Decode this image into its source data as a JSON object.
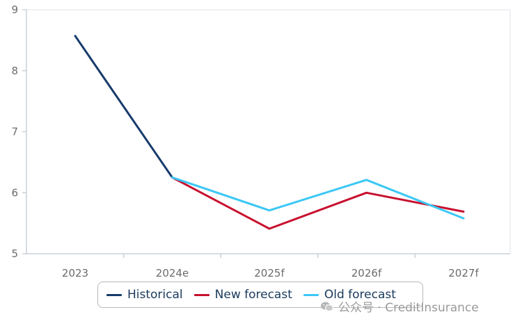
{
  "chart_data": {
    "type": "line",
    "categories": [
      "2023",
      "2024e",
      "2025f",
      "2026f",
      "2027f"
    ],
    "y_ticks": [
      "5",
      "6",
      "7",
      "8",
      "9"
    ],
    "ylim": [
      5,
      9
    ],
    "grid": false,
    "legend_position": "bottom",
    "series": [
      {
        "name": "Historical",
        "color": "#163a6b",
        "values": [
          8.57,
          6.25,
          null,
          null,
          null
        ]
      },
      {
        "name": "New forecast",
        "color": "#c8102e",
        "values": [
          null,
          6.25,
          5.41,
          6.0,
          5.69
        ]
      },
      {
        "name": "Old forecast",
        "color": "#3cc8f5",
        "values": [
          null,
          6.25,
          5.71,
          6.21,
          5.58
        ]
      }
    ]
  },
  "watermark": {
    "text": "公众号 · CreditInsurance",
    "icon": "wechat-icon"
  }
}
